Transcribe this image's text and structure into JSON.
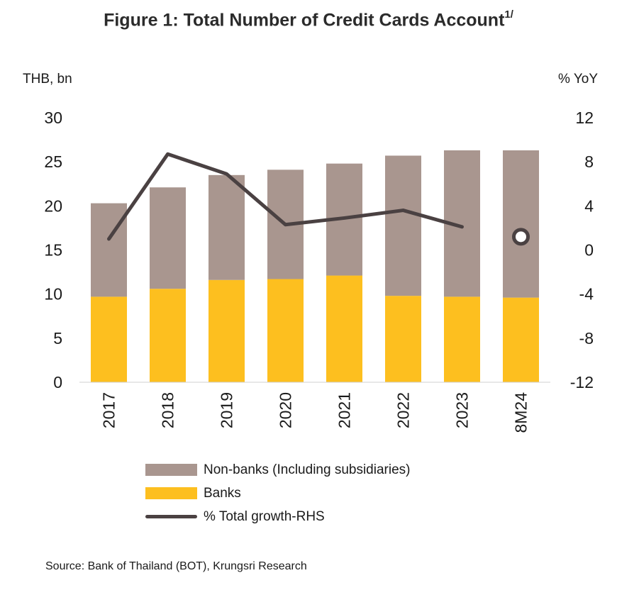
{
  "title": {
    "text": "Figure 1: Total Number of Credit Cards Account",
    "superscript": "1/"
  },
  "chart_data": {
    "type": "bar",
    "stacked": true,
    "categories": [
      "2017",
      "2018",
      "2019",
      "2020",
      "2021",
      "2022",
      "2023",
      "8M24"
    ],
    "series": [
      {
        "name": "Banks",
        "axis": "left",
        "color": "#FDBF1F",
        "values": [
          9.7,
          10.6,
          11.6,
          11.7,
          12.1,
          9.8,
          9.7,
          9.6
        ]
      },
      {
        "name": "Non-banks (Including subsidiaries)",
        "axis": "left",
        "color": "#A9968F",
        "values": [
          10.6,
          11.5,
          11.9,
          12.4,
          12.7,
          15.9,
          16.6,
          16.7
        ]
      },
      {
        "name": "% Total growth-RHS",
        "axis": "right",
        "type": "line",
        "color": "#4A4142",
        "values": [
          1.0,
          8.7,
          6.9,
          2.3,
          2.9,
          3.6,
          2.1,
          null
        ],
        "marker": {
          "category": "8M24",
          "value": 1.2
        }
      }
    ],
    "ylabel_left": "THB, bn",
    "ylabel_right": "% YoY",
    "ylim_left": [
      0,
      30
    ],
    "yticks_left": [
      "0",
      "5",
      "10",
      "15",
      "20",
      "25",
      "30"
    ],
    "ylim_right": [
      -12,
      12
    ],
    "yticks_right": [
      "-12",
      "-8",
      "-4",
      "0",
      "4",
      "8",
      "12"
    ],
    "grid": false,
    "legend_position": "bottom"
  },
  "source": "Source: Bank of Thailand (BOT), Krungsri Research"
}
